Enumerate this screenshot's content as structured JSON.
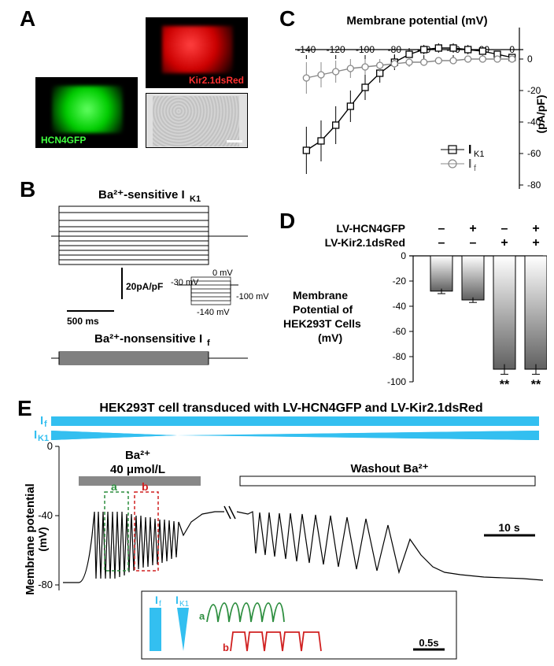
{
  "panels": {
    "A": {
      "label": "A",
      "images": {
        "red": {
          "label": "Kir2.1dsRed",
          "color": "#ff3030"
        },
        "green": {
          "label": "HCN4GFP",
          "color": "#40ff40"
        },
        "gray": {
          "label": ""
        }
      }
    },
    "B": {
      "label": "B",
      "top_title": "Ba²⁺-sensitive I_K1",
      "bottom_title": "Ba²⁺-nonsensitive I_f",
      "scale_y": "20pA/pF",
      "scale_x": "500 ms",
      "protocol": {
        "top": "0 mV",
        "rest": "-30 mV",
        "bottom": "-100 mV",
        "step": "-140 mV"
      },
      "trace_colors": "#000000"
    },
    "C": {
      "label": "C",
      "title": "Membrane potential (mV)",
      "ylabel": "(pA/pF)",
      "xlim": [
        -145,
        5
      ],
      "ylim": [
        -80,
        15
      ],
      "xticks": [
        -140,
        -120,
        -100,
        -80,
        -60,
        -40,
        -20,
        0
      ],
      "yticks": [
        -80,
        -60,
        -40,
        -20,
        0
      ],
      "series": [
        {
          "name": "I_K1",
          "marker": "square",
          "color": "#000000",
          "data": [
            [
              -140,
              -58
            ],
            [
              -130,
              -52
            ],
            [
              -120,
              -42
            ],
            [
              -110,
              -30
            ],
            [
              -100,
              -18
            ],
            [
              -90,
              -9
            ],
            [
              -80,
              -2
            ],
            [
              -70,
              3
            ],
            [
              -60,
              6
            ],
            [
              -50,
              7
            ],
            [
              -40,
              7
            ],
            [
              -30,
              6
            ],
            [
              -20,
              5
            ],
            [
              -10,
              3
            ],
            [
              0,
              1
            ]
          ],
          "err": [
            15,
            13,
            12,
            10,
            8,
            6,
            5,
            4,
            3,
            3,
            3,
            3,
            2,
            2,
            2
          ]
        },
        {
          "name": "I_f",
          "marker": "circle",
          "color": "#888888",
          "data": [
            [
              -140,
              -12
            ],
            [
              -130,
              -10
            ],
            [
              -120,
              -8
            ],
            [
              -110,
              -6
            ],
            [
              -100,
              -5
            ],
            [
              -90,
              -4
            ],
            [
              -80,
              -3
            ],
            [
              -70,
              -2
            ],
            [
              -60,
              -2
            ],
            [
              -50,
              -1
            ],
            [
              -40,
              -1
            ],
            [
              -30,
              0
            ],
            [
              -20,
              0
            ],
            [
              -10,
              0
            ],
            [
              0,
              0
            ]
          ],
          "err": [
            10,
            8,
            7,
            6,
            5,
            4,
            3,
            3,
            2,
            2,
            2,
            1,
            1,
            1,
            1
          ]
        }
      ],
      "legend": [
        "I_K1",
        "I_f"
      ]
    },
    "D": {
      "label": "D",
      "rows": [
        {
          "label": "LV-HCN4GFP",
          "values": [
            "–",
            "+",
            "–",
            "+"
          ]
        },
        {
          "label": "LV-Kir2.1dsRed",
          "values": [
            "–",
            "–",
            "+",
            "+"
          ]
        }
      ],
      "ylabel": "Membrane\nPotential of\nHEK293T Cells\n(mV)",
      "ylim": [
        -100,
        0
      ],
      "yticks": [
        0,
        -20,
        -40,
        -60,
        -80,
        -100
      ],
      "bars": [
        -28,
        -35,
        -90,
        -90
      ],
      "err": [
        2,
        2,
        4,
        4
      ],
      "sig": [
        "",
        "",
        "**",
        "**"
      ],
      "bar_fill": "linear-gradient(#ffffff,#606060)",
      "bar_stroke": "#000000"
    },
    "E": {
      "label": "E",
      "header": "HEK293T cell transduced with LV-HCN4GFP and LV-Kir2.1dsRed",
      "bands": {
        "If_color": "#33bff0",
        "Ik1_color": "#33bff0",
        "If": "I_f",
        "Ik1": "I_K1"
      },
      "ba_label": "Ba²⁺\n40 μmol/L",
      "washout_label": "Washout Ba²⁺",
      "ylabel": "Membrane potential\n(mV)",
      "yticks": [
        0,
        -40,
        -80
      ],
      "scale_x": "10 s",
      "inset": {
        "If": "I_f",
        "Ik1": "I_K1",
        "a_color": "#2d8e3f",
        "b_color": "#d02020",
        "a_label": "a",
        "b_label": "b",
        "scale": "0.5s"
      }
    }
  },
  "colors": {
    "cyan": "#33bff0",
    "green": "#2d8e3f",
    "red": "#d02020",
    "gray": "#888888",
    "black": "#000000"
  }
}
